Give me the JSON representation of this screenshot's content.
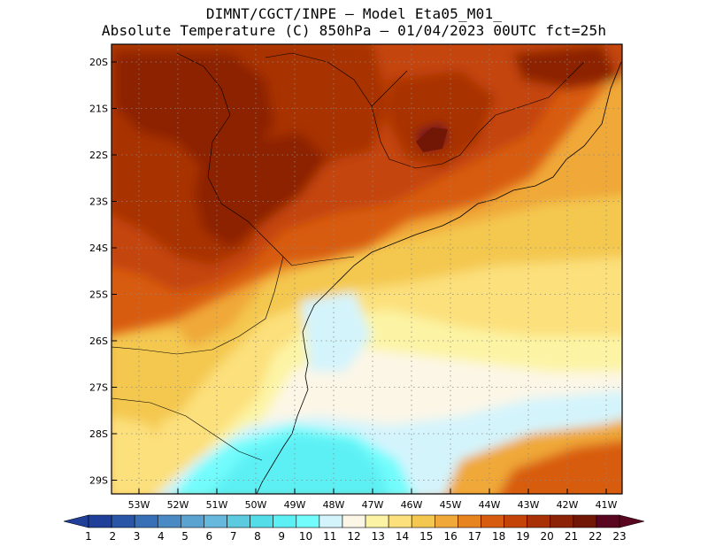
{
  "title": {
    "line1": "DIMNT/CGCT/INPE –  Model Eta05_M01_",
    "line2": "Absolute Temperature (C) 850hPa –  01/04/2023 00UTC fct=25h"
  },
  "map": {
    "lat_labels": [
      "20S",
      "21S",
      "22S",
      "23S",
      "24S",
      "25S",
      "26S",
      "27S",
      "28S",
      "29S"
    ],
    "lon_labels": [
      "53W",
      "52W",
      "51W",
      "50W",
      "49W",
      "48W",
      "47W",
      "46W",
      "45W",
      "44W",
      "43W",
      "42W",
      "41W"
    ],
    "field": "temperature 850hPa"
  },
  "colorbar": {
    "labels": [
      "1",
      "2",
      "3",
      "4",
      "5",
      "6",
      "7",
      "8",
      "9",
      "10",
      "11",
      "12",
      "13",
      "14",
      "15",
      "16",
      "17",
      "18",
      "19",
      "20",
      "21",
      "22",
      "23"
    ],
    "colors": [
      "#1f3f99",
      "#2a56a8",
      "#3770b6",
      "#4a8ac4",
      "#5aa2d0",
      "#66b8dc",
      "#5ccbe0",
      "#52dde8",
      "#5cf0f4",
      "#72fcfc",
      "#d4f4fc",
      "#fcf6e6",
      "#fcf4a4",
      "#fce07c",
      "#f4c850",
      "#f0a838",
      "#e88420",
      "#d85c10",
      "#c44408",
      "#a83206",
      "#8c2206",
      "#721606",
      "#5a0620"
    ]
  }
}
